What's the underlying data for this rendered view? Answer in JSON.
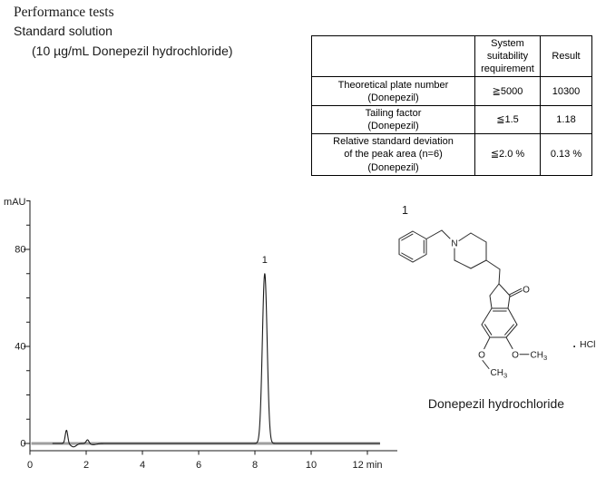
{
  "header": {
    "line1": "Performance tests",
    "line2": "Standard solution",
    "line3": "(10 µg/mL Donepezil hydrochloride)"
  },
  "table": {
    "col_headers": [
      "",
      "System\nsuitability\nrequirement",
      "Result"
    ],
    "rows": [
      {
        "name": "Theoretical plate number\n(Donepezil)",
        "requirement": "≧5000",
        "result": "10300"
      },
      {
        "name": "Tailing factor\n(Donepezil)",
        "requirement": "≦1.5",
        "result": "1.18"
      },
      {
        "name": "Relative standard deviation\nof the peak area (n=6)\n(Donepezil)",
        "requirement": "≦2.0 %",
        "result": "0.13 %"
      }
    ]
  },
  "chart_data": {
    "type": "line",
    "title": "",
    "ylabel": "mAU",
    "xlabel": "min",
    "xlim": [
      0,
      13.1
    ],
    "ylim": [
      0,
      102
    ],
    "grid": false,
    "x_major_ticks": [
      0,
      2,
      4,
      6,
      8,
      10,
      12
    ],
    "x_tick_labels": [
      "0",
      "2",
      "4",
      "6",
      "8",
      "10",
      "12 min"
    ],
    "y_major_ticks": [
      0,
      40,
      80
    ],
    "y_minor_step": 10,
    "y_axis_top": 100,
    "trace_color": "#1a1a1a",
    "baseline_color": "#9e9e9e",
    "baseline_range_min": [
      0.05,
      12.45
    ],
    "trace_range_min": [
      0.8,
      12.45
    ],
    "peaks": [
      {
        "label": "",
        "time_min": 1.3,
        "height_mau": 5.5,
        "sigma_min": 0.045
      },
      {
        "label": "",
        "time_min": 2.05,
        "height_mau": 1.6,
        "sigma_min": 0.05
      },
      {
        "label": "1",
        "time_min": 8.35,
        "height_mau": 70,
        "sigma_min": 0.085
      }
    ],
    "dips": [
      {
        "time_min": 1.55,
        "depth_mau": 1.4,
        "sigma_min": 0.1
      },
      {
        "time_min": 2.25,
        "depth_mau": 0.5,
        "sigma_min": 0.12
      }
    ]
  },
  "structure": {
    "peak_number": "1",
    "caption": "Donepezil hydrochloride",
    "labels": {
      "amine_n": "N",
      "carbonyl_o": "O",
      "left_o": "O",
      "left_ch": "CH",
      "left_sub": "3",
      "right_o": "O",
      "right_ch": "CH",
      "right_sub": "3",
      "salt_dot": ".",
      "salt": "HCl"
    }
  }
}
